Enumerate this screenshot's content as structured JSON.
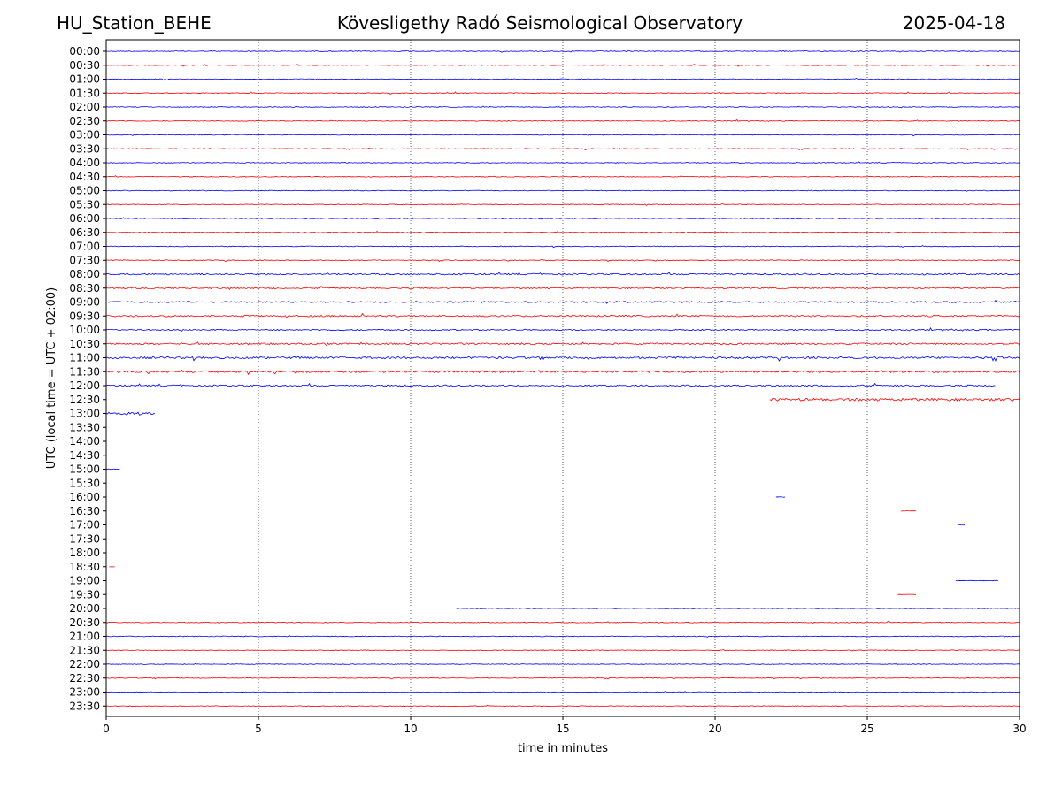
{
  "header": {
    "station": "HU_Station_BEHE",
    "observatory": "Kövesligethy Radó Seismological Observatory",
    "date": "2025-04-18"
  },
  "chart_data": {
    "type": "line",
    "xlabel": "time in minutes",
    "ylabel": "UTC (local time = UTC + 02:00)",
    "xlim": [
      0,
      30
    ],
    "xticks": [
      0,
      5,
      10,
      15,
      20,
      25,
      30
    ],
    "grid": "vertical dotted lines at each x tick",
    "colors": {
      "even_trace": "#0000ff",
      "odd_trace": "#ff0000"
    },
    "rows": [
      "00:00",
      "00:30",
      "01:00",
      "01:30",
      "02:00",
      "02:30",
      "03:00",
      "03:30",
      "04:00",
      "04:30",
      "05:00",
      "05:30",
      "06:00",
      "06:30",
      "07:00",
      "07:30",
      "08:00",
      "08:30",
      "09:00",
      "09:30",
      "10:00",
      "10:30",
      "11:00",
      "11:30",
      "12:00",
      "12:30",
      "13:00",
      "13:30",
      "14:00",
      "14:30",
      "15:00",
      "15:30",
      "16:00",
      "16:30",
      "17:00",
      "17:30",
      "18:00",
      "18:30",
      "19:00",
      "19:30",
      "20:00",
      "20:30",
      "21:00",
      "21:30",
      "22:00",
      "22:30",
      "23:00",
      "23:30"
    ],
    "traces": [
      {
        "row": 0,
        "segments": [
          [
            0,
            30
          ]
        ],
        "amp": 0.6
      },
      {
        "row": 1,
        "segments": [
          [
            0,
            30
          ]
        ],
        "amp": 0.6
      },
      {
        "row": 2,
        "segments": [
          [
            0,
            30
          ]
        ],
        "amp": 0.6
      },
      {
        "row": 3,
        "segments": [
          [
            0,
            30
          ]
        ],
        "amp": 0.6
      },
      {
        "row": 4,
        "segments": [
          [
            0,
            30
          ]
        ],
        "amp": 0.6
      },
      {
        "row": 5,
        "segments": [
          [
            0,
            30
          ]
        ],
        "amp": 0.6
      },
      {
        "row": 6,
        "segments": [
          [
            0,
            30
          ]
        ],
        "amp": 0.6
      },
      {
        "row": 7,
        "segments": [
          [
            0,
            30
          ]
        ],
        "amp": 0.6
      },
      {
        "row": 8,
        "segments": [
          [
            0,
            30
          ]
        ],
        "amp": 0.6
      },
      {
        "row": 9,
        "segments": [
          [
            0,
            30
          ]
        ],
        "amp": 0.6
      },
      {
        "row": 10,
        "segments": [
          [
            0,
            30
          ]
        ],
        "amp": 0.6
      },
      {
        "row": 11,
        "segments": [
          [
            0,
            30
          ]
        ],
        "amp": 0.6
      },
      {
        "row": 12,
        "segments": [
          [
            0,
            30
          ]
        ],
        "amp": 0.6
      },
      {
        "row": 13,
        "segments": [
          [
            0,
            30
          ]
        ],
        "amp": 0.6
      },
      {
        "row": 14,
        "segments": [
          [
            0,
            30
          ]
        ],
        "amp": 0.6
      },
      {
        "row": 15,
        "segments": [
          [
            0,
            30
          ]
        ],
        "amp": 0.7
      },
      {
        "row": 16,
        "segments": [
          [
            0,
            30
          ]
        ],
        "amp": 1.2
      },
      {
        "row": 17,
        "segments": [
          [
            0,
            30
          ]
        ],
        "amp": 1.1
      },
      {
        "row": 18,
        "segments": [
          [
            0,
            30
          ]
        ],
        "amp": 1.1
      },
      {
        "row": 19,
        "segments": [
          [
            0,
            30
          ]
        ],
        "amp": 1.2
      },
      {
        "row": 20,
        "segments": [
          [
            0,
            30
          ]
        ],
        "amp": 1.0
      },
      {
        "row": 21,
        "segments": [
          [
            0,
            30
          ]
        ],
        "amp": 1.3
      },
      {
        "row": 22,
        "segments": [
          [
            0,
            30
          ]
        ],
        "amp": 1.6
      },
      {
        "row": 23,
        "segments": [
          [
            0,
            30
          ]
        ],
        "amp": 1.6
      },
      {
        "row": 24,
        "segments": [
          [
            0,
            29.2
          ]
        ],
        "amp": 1.2
      },
      {
        "row": 25,
        "segments": [
          [
            21.8,
            30
          ]
        ],
        "amp": 2.0
      },
      {
        "row": 26,
        "segments": [
          [
            0,
            1.6
          ]
        ],
        "amp": 2.5
      },
      {
        "row": 30,
        "segments": [
          [
            0,
            0.45
          ]
        ],
        "amp": 0.4
      },
      {
        "row": 32,
        "segments": [
          [
            22.0,
            22.3
          ]
        ],
        "amp": 0.4
      },
      {
        "row": 33,
        "segments": [
          [
            26.1,
            26.6
          ]
        ],
        "amp": 0.4
      },
      {
        "row": 34,
        "segments": [
          [
            28.0,
            28.2
          ]
        ],
        "amp": 0.4
      },
      {
        "row": 37,
        "segments": [
          [
            0.1,
            0.28
          ]
        ],
        "amp": 0.3
      },
      {
        "row": 38,
        "segments": [
          [
            27.9,
            29.3
          ]
        ],
        "amp": 0.4
      },
      {
        "row": 39,
        "segments": [
          [
            26.0,
            26.6
          ]
        ],
        "amp": 0.4
      },
      {
        "row": 40,
        "segments": [
          [
            11.5,
            30
          ]
        ],
        "amp": 0.5
      },
      {
        "row": 41,
        "segments": [
          [
            0,
            30
          ]
        ],
        "amp": 0.6
      },
      {
        "row": 42,
        "segments": [
          [
            0,
            30
          ]
        ],
        "amp": 0.6
      },
      {
        "row": 43,
        "segments": [
          [
            0,
            30
          ]
        ],
        "amp": 0.5
      },
      {
        "row": 44,
        "segments": [
          [
            0,
            30
          ]
        ],
        "amp": 0.5
      },
      {
        "row": 45,
        "segments": [
          [
            0,
            30
          ]
        ],
        "amp": 0.5
      },
      {
        "row": 46,
        "segments": [
          [
            0,
            30
          ]
        ],
        "amp": 0.5
      },
      {
        "row": 47,
        "segments": [
          [
            0,
            30
          ]
        ],
        "amp": 0.5
      }
    ]
  }
}
